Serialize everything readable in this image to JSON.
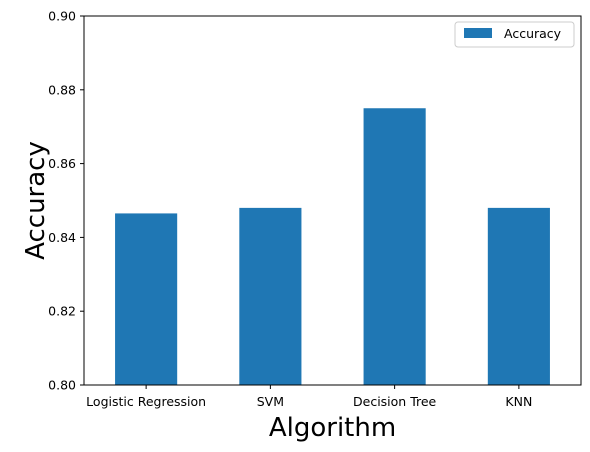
{
  "chart_data": {
    "type": "bar",
    "categories": [
      "Logistic Regression",
      "SVM",
      "Decision Tree",
      "KNN"
    ],
    "series": [
      {
        "name": "Accuracy",
        "values": [
          0.8465,
          0.848,
          0.875,
          0.848
        ],
        "color": "#1f77b4"
      }
    ],
    "title": "",
    "xlabel": "Algorithm",
    "ylabel": "Accuracy",
    "ylim": [
      0.8,
      0.9
    ],
    "yticks": [
      "0.80",
      "0.82",
      "0.84",
      "0.86",
      "0.88",
      "0.90"
    ],
    "grid": false,
    "legend": {
      "placement": "top-right",
      "label": "Accuracy"
    }
  }
}
